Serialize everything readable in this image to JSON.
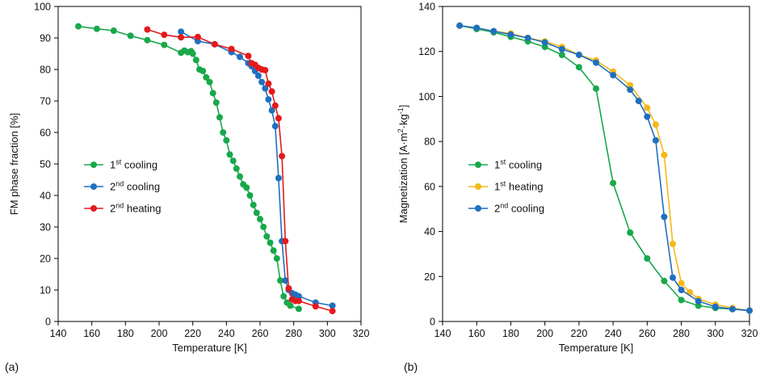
{
  "chart_data": [
    {
      "type": "line",
      "panel_label": "(a)",
      "xlabel": "Temperature [K]",
      "ylabel": "FM phase fraction [%]",
      "xlim": [
        140,
        320
      ],
      "ylim": [
        0,
        100
      ],
      "xticks": [
        "140",
        "160",
        "180",
        "200",
        "220",
        "240",
        "260",
        "280",
        "300",
        "320"
      ],
      "yticks": [
        "0",
        "10",
        "20",
        "30",
        "40",
        "50",
        "60",
        "70",
        "80",
        "90",
        "100"
      ],
      "grid": false,
      "legend_position": "center-left",
      "series": [
        {
          "legend_base": "1",
          "legend_sup": "st",
          "legend_rest": " cooling",
          "color": "#18a84a",
          "points": [
            [
              152,
              93.7
            ],
            [
              163,
              92.9
            ],
            [
              173,
              92.3
            ],
            [
              183,
              90.7
            ],
            [
              193,
              89.3
            ],
            [
              203,
              87.8
            ],
            [
              213,
              85.3
            ],
            [
              215,
              86.0
            ],
            [
              217,
              85.5
            ],
            [
              219,
              85.8
            ],
            [
              220,
              85.0
            ],
            [
              222,
              83.0
            ],
            [
              224,
              80.0
            ],
            [
              226,
              79.5
            ],
            [
              228,
              77.5
            ],
            [
              230,
              76.0
            ],
            [
              232,
              72.5
            ],
            [
              234,
              69.5
            ],
            [
              236,
              64.8
            ],
            [
              238,
              60.0
            ],
            [
              240,
              57.5
            ],
            [
              242,
              53.0
            ],
            [
              244,
              51.0
            ],
            [
              246,
              48.5
            ],
            [
              248,
              46.0
            ],
            [
              250,
              43.5
            ],
            [
              252,
              42.5
            ],
            [
              254,
              40.0
            ],
            [
              256,
              37.0
            ],
            [
              258,
              34.5
            ],
            [
              260,
              32.5
            ],
            [
              262,
              30.0
            ],
            [
              264,
              27.0
            ],
            [
              266,
              25.0
            ],
            [
              268,
              22.5
            ],
            [
              270,
              20.0
            ],
            [
              272,
              13.0
            ],
            [
              274,
              8.0
            ],
            [
              276,
              6.0
            ],
            [
              278,
              5.0
            ],
            [
              283,
              4.0
            ]
          ]
        },
        {
          "legend_base": "2",
          "legend_sup": "nd",
          "legend_rest": " cooling",
          "color": "#1f6fbf",
          "points": [
            [
              303,
              5.0
            ],
            [
              293,
              6.0
            ],
            [
              283,
              8.0
            ],
            [
              281,
              8.5
            ],
            [
              279,
              9.0
            ],
            [
              277,
              10.0
            ],
            [
              275,
              13.0
            ],
            [
              273,
              25.5
            ],
            [
              271,
              45.5
            ],
            [
              269,
              62.0
            ],
            [
              267,
              67.0
            ],
            [
              265,
              70.5
            ],
            [
              263,
              74.0
            ],
            [
              261,
              76.0
            ],
            [
              259,
              78.0
            ],
            [
              257,
              79.5
            ],
            [
              255,
              81.0
            ],
            [
              253,
              82.0
            ],
            [
              248,
              84.0
            ],
            [
              243,
              85.5
            ],
            [
              233,
              88.0
            ],
            [
              223,
              89.0
            ],
            [
              213,
              92.0
            ]
          ]
        },
        {
          "legend_base": "2",
          "legend_sup": "nd",
          "legend_rest": " heating",
          "color": "#e31a1c",
          "points": [
            [
              193,
              92.7
            ],
            [
              203,
              91.0
            ],
            [
              213,
              90.2
            ],
            [
              223,
              90.3
            ],
            [
              233,
              88.0
            ],
            [
              243,
              86.5
            ],
            [
              253,
              84.3
            ],
            [
              255,
              82.0
            ],
            [
              257,
              81.5
            ],
            [
              259,
              80.5
            ],
            [
              261,
              80.0
            ],
            [
              263,
              79.8
            ],
            [
              265,
              75.5
            ],
            [
              267,
              73.0
            ],
            [
              269,
              68.5
            ],
            [
              271,
              64.5
            ],
            [
              273,
              52.5
            ],
            [
              275,
              25.5
            ],
            [
              277,
              10.5
            ],
            [
              279,
              7.0
            ],
            [
              281,
              6.5
            ],
            [
              283,
              6.5
            ],
            [
              293,
              4.8
            ],
            [
              303,
              3.3
            ]
          ]
        }
      ]
    },
    {
      "type": "line",
      "panel_label": "(b)",
      "xlabel": "Temperature [K]",
      "ylabel_base": "Magnetization [A·m",
      "ylabel_sup1": "2",
      "ylabel_mid": "·kg",
      "ylabel_sup2": "-1",
      "ylabel_end": "]",
      "xlim": [
        140,
        320
      ],
      "ylim": [
        0,
        140
      ],
      "xticks": [
        "140",
        "160",
        "180",
        "200",
        "220",
        "240",
        "260",
        "280",
        "300",
        "320"
      ],
      "yticks": [
        "0",
        "20",
        "40",
        "60",
        "80",
        "100",
        "120",
        "140"
      ],
      "grid": false,
      "legend_position": "center-left",
      "series": [
        {
          "legend_base": "1",
          "legend_sup": "st",
          "legend_rest": " cooling",
          "color": "#18a84a",
          "points": [
            [
              150,
              131.5
            ],
            [
              160,
              130.0
            ],
            [
              170,
              128.5
            ],
            [
              180,
              126.5
            ],
            [
              190,
              124.5
            ],
            [
              200,
              122.0
            ],
            [
              210,
              118.5
            ],
            [
              220,
              113.0
            ],
            [
              230,
              103.5
            ],
            [
              240,
              61.5
            ],
            [
              250,
              39.5
            ],
            [
              260,
              28.0
            ],
            [
              270,
              18.0
            ],
            [
              280,
              9.5
            ],
            [
              290,
              7.0
            ],
            [
              300,
              6.0
            ],
            [
              310,
              5.5
            ],
            [
              320,
              4.8
            ]
          ]
        },
        {
          "legend_base": "1",
          "legend_sup": "st",
          "legend_rest": " heating",
          "color": "#f5b819",
          "points": [
            [
              150,
              131.5
            ],
            [
              160,
              130.5
            ],
            [
              170,
              129.0
            ],
            [
              180,
              128.0
            ],
            [
              190,
              126.0
            ],
            [
              200,
              124.5
            ],
            [
              210,
              122.0
            ],
            [
              220,
              118.5
            ],
            [
              230,
              116.0
            ],
            [
              240,
              111.0
            ],
            [
              250,
              105.0
            ],
            [
              260,
              95.0
            ],
            [
              265,
              87.5
            ],
            [
              270,
              74.0
            ],
            [
              275,
              34.5
            ],
            [
              280,
              17.0
            ],
            [
              285,
              13.0
            ],
            [
              290,
              10.0
            ],
            [
              300,
              7.5
            ],
            [
              310,
              6.0
            ],
            [
              320,
              4.8
            ]
          ]
        },
        {
          "legend_base": "2",
          "legend_sup": "nd",
          "legend_rest": " cooling",
          "color": "#1f6fbf",
          "points": [
            [
              150,
              131.5
            ],
            [
              160,
              130.5
            ],
            [
              170,
              129.0
            ],
            [
              180,
              127.5
            ],
            [
              190,
              126.0
            ],
            [
              200,
              124.0
            ],
            [
              210,
              121.0
            ],
            [
              220,
              118.5
            ],
            [
              230,
              115.0
            ],
            [
              240,
              109.5
            ],
            [
              250,
              103.0
            ],
            [
              255,
              98.0
            ],
            [
              260,
              91.0
            ],
            [
              265,
              80.5
            ],
            [
              270,
              46.5
            ],
            [
              275,
              19.5
            ],
            [
              280,
              14.0
            ],
            [
              290,
              9.0
            ],
            [
              300,
              6.5
            ],
            [
              310,
              5.5
            ],
            [
              320,
              4.8
            ]
          ]
        }
      ]
    }
  ]
}
